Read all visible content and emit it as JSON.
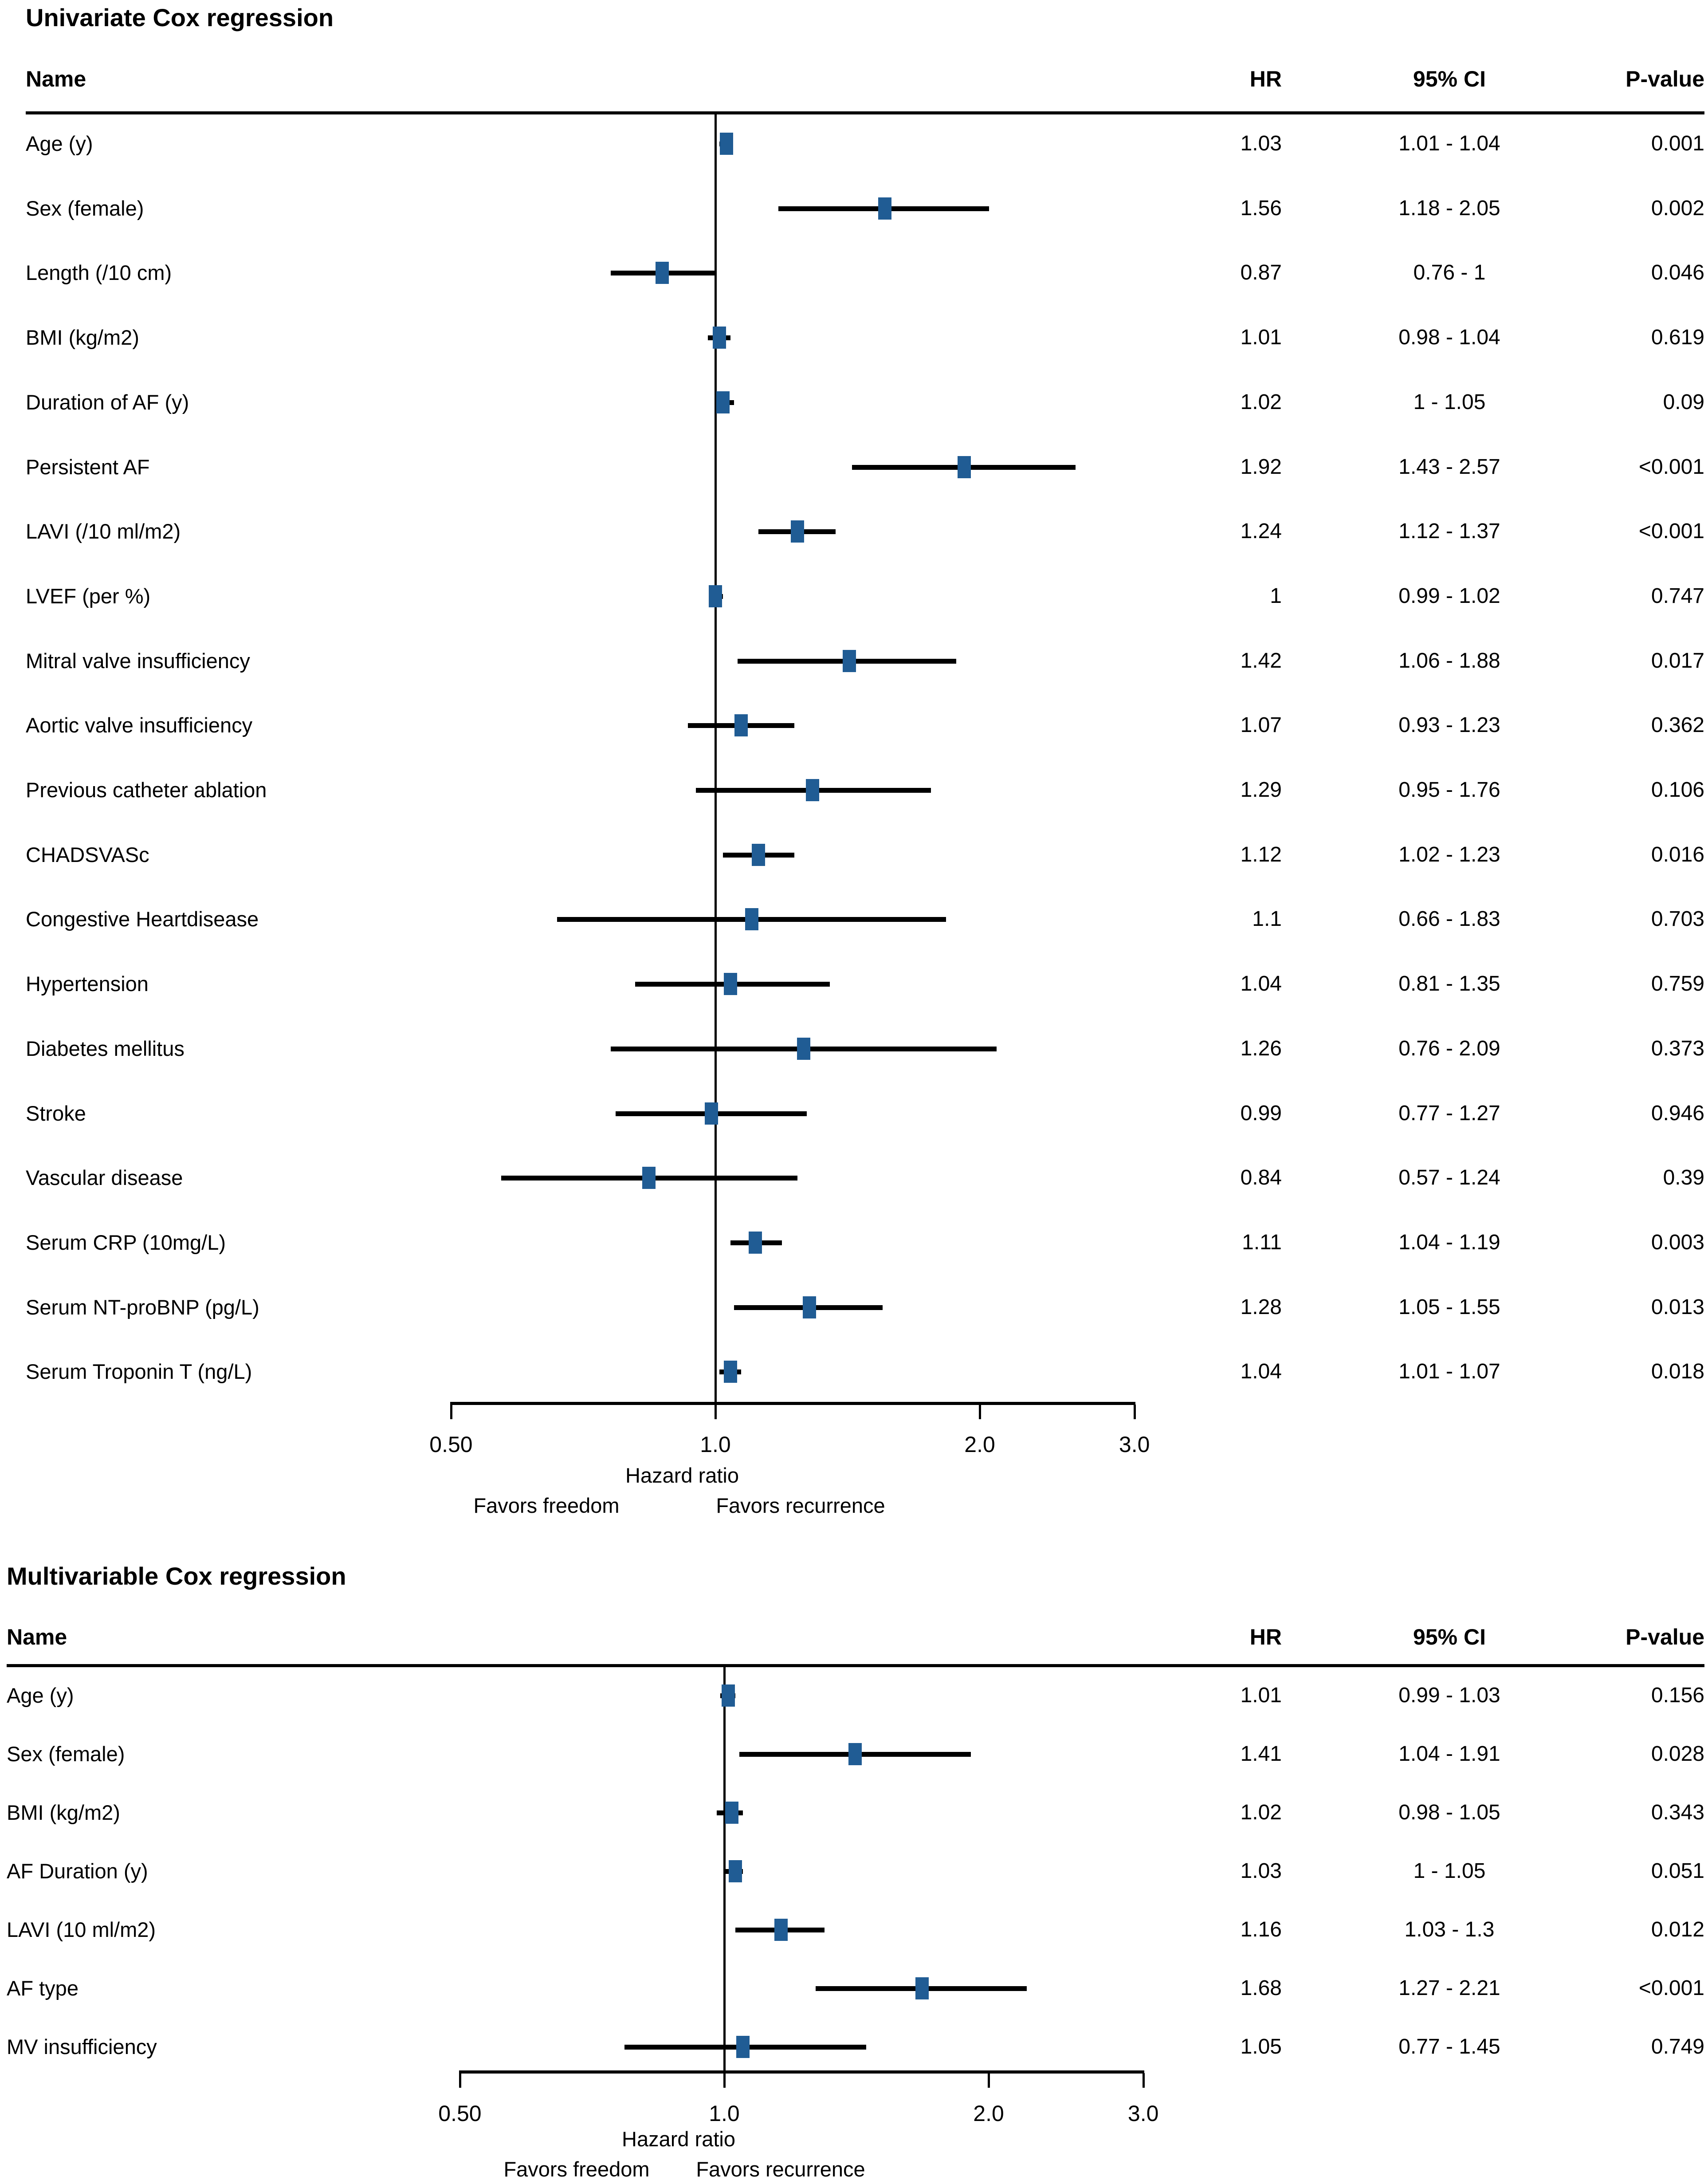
{
  "colors": {
    "marker": "#205C94",
    "line": "#000000",
    "text": "#000000",
    "background": "#ffffff"
  },
  "chart_data": [
    {
      "type": "forest",
      "title": "Univariate Cox regression",
      "columns": {
        "name": "Name",
        "hr": "HR",
        "ci": "95% CI",
        "p": "P-value"
      },
      "axis": {
        "scale": "log",
        "tick_values": [
          0.5,
          1.0,
          2.0,
          3.0
        ],
        "tick_labels": [
          "0.50",
          "1.0",
          "2.0",
          "3.0"
        ],
        "reference_line": 1.0,
        "xlabel": "Hazard ratio",
        "left_annotation": "Favors freedom",
        "right_annotation": "Favors recurrence"
      },
      "rows": [
        {
          "name": "Age (y)",
          "hr": 1.03,
          "lo": 1.01,
          "hi": 1.04,
          "hr_text": "1.03",
          "ci_text": "1.01 - 1.04",
          "p_text": "0.001"
        },
        {
          "name": "Sex (female)",
          "hr": 1.56,
          "lo": 1.18,
          "hi": 2.05,
          "hr_text": "1.56",
          "ci_text": "1.18 - 2.05",
          "p_text": "0.002"
        },
        {
          "name": "Length (/10 cm)",
          "hr": 0.87,
          "lo": 0.76,
          "hi": 1.0,
          "hr_text": "0.87",
          "ci_text": "0.76 - 1",
          "p_text": "0.046"
        },
        {
          "name": "BMI (kg/m2)",
          "hr": 1.01,
          "lo": 0.98,
          "hi": 1.04,
          "hr_text": "1.01",
          "ci_text": "0.98 - 1.04",
          "p_text": "0.619"
        },
        {
          "name": "Duration of AF (y)",
          "hr": 1.02,
          "lo": 1.0,
          "hi": 1.05,
          "hr_text": "1.02",
          "ci_text": "1 - 1.05",
          "p_text": "0.09"
        },
        {
          "name": "Persistent AF",
          "hr": 1.92,
          "lo": 1.43,
          "hi": 2.57,
          "hr_text": "1.92",
          "ci_text": "1.43 - 2.57",
          "p_text": "<0.001"
        },
        {
          "name": "LAVI (/10 ml/m2)",
          "hr": 1.24,
          "lo": 1.12,
          "hi": 1.37,
          "hr_text": "1.24",
          "ci_text": "1.12 - 1.37",
          "p_text": "<0.001"
        },
        {
          "name": "LVEF (per %)",
          "hr": 1.0,
          "lo": 0.99,
          "hi": 1.02,
          "hr_text": "1",
          "ci_text": "0.99 - 1.02",
          "p_text": "0.747"
        },
        {
          "name": "Mitral valve insufficiency",
          "hr": 1.42,
          "lo": 1.06,
          "hi": 1.88,
          "hr_text": "1.42",
          "ci_text": "1.06 - 1.88",
          "p_text": "0.017"
        },
        {
          "name": "Aortic valve insufficiency",
          "hr": 1.07,
          "lo": 0.93,
          "hi": 1.23,
          "hr_text": "1.07",
          "ci_text": "0.93 - 1.23",
          "p_text": "0.362"
        },
        {
          "name": "Previous catheter ablation",
          "hr": 1.29,
          "lo": 0.95,
          "hi": 1.76,
          "hr_text": "1.29",
          "ci_text": "0.95 - 1.76",
          "p_text": "0.106"
        },
        {
          "name": "CHADSVASc",
          "hr": 1.12,
          "lo": 1.02,
          "hi": 1.23,
          "hr_text": "1.12",
          "ci_text": "1.02 - 1.23",
          "p_text": "0.016"
        },
        {
          "name": "Congestive Heartdisease",
          "hr": 1.1,
          "lo": 0.66,
          "hi": 1.83,
          "hr_text": "1.1",
          "ci_text": "0.66 - 1.83",
          "p_text": "0.703"
        },
        {
          "name": "Hypertension",
          "hr": 1.04,
          "lo": 0.81,
          "hi": 1.35,
          "hr_text": "1.04",
          "ci_text": "0.81 - 1.35",
          "p_text": "0.759"
        },
        {
          "name": "Diabetes mellitus",
          "hr": 1.26,
          "lo": 0.76,
          "hi": 2.09,
          "hr_text": "1.26",
          "ci_text": "0.76 - 2.09",
          "p_text": "0.373"
        },
        {
          "name": "Stroke",
          "hr": 0.99,
          "lo": 0.77,
          "hi": 1.27,
          "hr_text": "0.99",
          "ci_text": "0.77 - 1.27",
          "p_text": "0.946"
        },
        {
          "name": "Vascular disease",
          "hr": 0.84,
          "lo": 0.57,
          "hi": 1.24,
          "hr_text": "0.84",
          "ci_text": "0.57 - 1.24",
          "p_text": "0.39"
        },
        {
          "name": "Serum CRP (10mg/L)",
          "hr": 1.11,
          "lo": 1.04,
          "hi": 1.19,
          "hr_text": "1.11",
          "ci_text": "1.04 - 1.19",
          "p_text": "0.003"
        },
        {
          "name": "Serum NT-proBNP (pg/L)",
          "hr": 1.28,
          "lo": 1.05,
          "hi": 1.55,
          "hr_text": "1.28",
          "ci_text": "1.05 - 1.55",
          "p_text": "0.013"
        },
        {
          "name": "Serum Troponin T (ng/L)",
          "hr": 1.04,
          "lo": 1.01,
          "hi": 1.07,
          "hr_text": "1.04",
          "ci_text": "1.01 - 1.07",
          "p_text": "0.018"
        }
      ]
    },
    {
      "type": "forest",
      "title": "Multivariable Cox regression",
      "columns": {
        "name": "Name",
        "hr": "HR",
        "ci": "95% CI",
        "p": "P-value"
      },
      "axis": {
        "scale": "log",
        "tick_values": [
          0.5,
          1.0,
          2.0,
          3.0
        ],
        "tick_labels": [
          "0.50",
          "1.0",
          "2.0",
          "3.0"
        ],
        "reference_line": 1.0,
        "xlabel": "Hazard ratio",
        "left_annotation": "Favors freedom",
        "right_annotation": "Favors recurrence"
      },
      "rows": [
        {
          "name": "Age (y)",
          "hr": 1.01,
          "lo": 0.99,
          "hi": 1.03,
          "hr_text": "1.01",
          "ci_text": "0.99 - 1.03",
          "p_text": "0.156"
        },
        {
          "name": "Sex (female)",
          "hr": 1.41,
          "lo": 1.04,
          "hi": 1.91,
          "hr_text": "1.41",
          "ci_text": "1.04 - 1.91",
          "p_text": "0.028"
        },
        {
          "name": "BMI (kg/m2)",
          "hr": 1.02,
          "lo": 0.98,
          "hi": 1.05,
          "hr_text": "1.02",
          "ci_text": "0.98 - 1.05",
          "p_text": "0.343"
        },
        {
          "name": "AF Duration (y)",
          "hr": 1.03,
          "lo": 1.0,
          "hi": 1.05,
          "hr_text": "1.03",
          "ci_text": "1 - 1.05",
          "p_text": "0.051"
        },
        {
          "name": "LAVI (10 ml/m2)",
          "hr": 1.16,
          "lo": 1.03,
          "hi": 1.3,
          "hr_text": "1.16",
          "ci_text": "1.03 - 1.3",
          "p_text": "0.012"
        },
        {
          "name": "AF type",
          "hr": 1.68,
          "lo": 1.27,
          "hi": 2.21,
          "hr_text": "1.68",
          "ci_text": "1.27 - 2.21",
          "p_text": "<0.001"
        },
        {
          "name": "MV insufficiency",
          "hr": 1.05,
          "lo": 0.77,
          "hi": 1.45,
          "hr_text": "1.05",
          "ci_text": "0.77 - 1.45",
          "p_text": "0.749"
        }
      ]
    }
  ]
}
